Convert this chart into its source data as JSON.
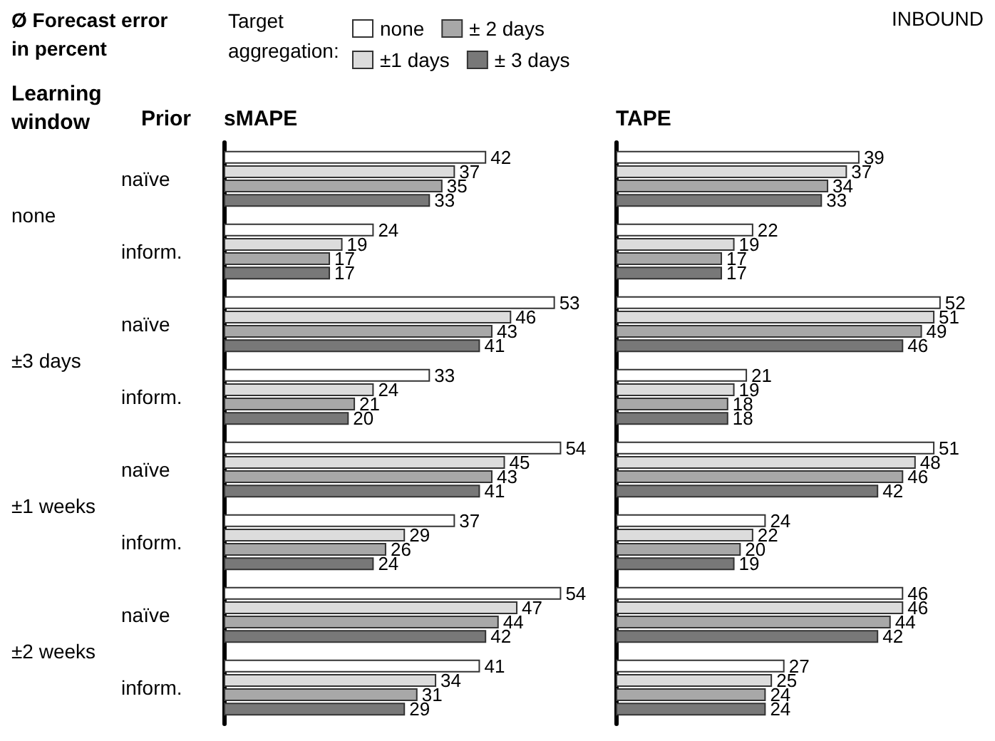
{
  "chart_data": [
    {
      "type": "bar",
      "orientation": "horizontal",
      "title": "Ø Forecast error\nin percent",
      "subtitle": "sMAPE",
      "ylabel": "Prior",
      "legend_title": "Target\naggregation:",
      "legend": "top",
      "annotations": [
        "Learning\nwindow"
      ],
      "categories": [
        "naïve",
        "inform.",
        "naïve",
        "inform.",
        "naïve",
        "inform.",
        "naïve",
        "inform."
      ],
      "y_categories": [
        "none",
        "±3 days",
        "±1 weeks",
        "±2 weeks"
      ],
      "data_labels": true,
      "tick_labels": "y",
      "series": [
        {
          "name": "none",
          "color": "#ffffff",
          "values": [
            42,
            24,
            53,
            33,
            54,
            37,
            54,
            41
          ]
        },
        {
          "name": "±1 days",
          "color": "#dcdcdc",
          "values": [
            37,
            19,
            46,
            24,
            45,
            29,
            47,
            34
          ]
        },
        {
          "name": "± 2 days",
          "color": "#a8a8a8",
          "values": [
            35,
            17,
            43,
            21,
            43,
            26,
            44,
            31
          ]
        },
        {
          "name": "± 3 days",
          "color": "#787878",
          "values": [
            33,
            17,
            41,
            20,
            41,
            24,
            42,
            29
          ]
        }
      ]
    },
    {
      "type": "bar",
      "orientation": "horizontal",
      "title": "TAPE",
      "annotations": [
        "INBOUND"
      ],
      "data_labels": true,
      "tick_labels": false,
      "series": [
        {
          "color": "#ffffff",
          "values": [
            39,
            22,
            52,
            21,
            51,
            24,
            46,
            27
          ]
        },
        {
          "color": "#dcdcdc",
          "values": [
            37,
            19,
            51,
            19,
            48,
            22,
            46,
            25
          ]
        },
        {
          "color": "#a8a8a8",
          "values": [
            34,
            17,
            49,
            18,
            46,
            20,
            44,
            24
          ]
        },
        {
          "color": "#787878",
          "values": [
            33,
            17,
            46,
            18,
            42,
            19,
            42,
            24
          ]
        }
      ]
    }
  ]
}
